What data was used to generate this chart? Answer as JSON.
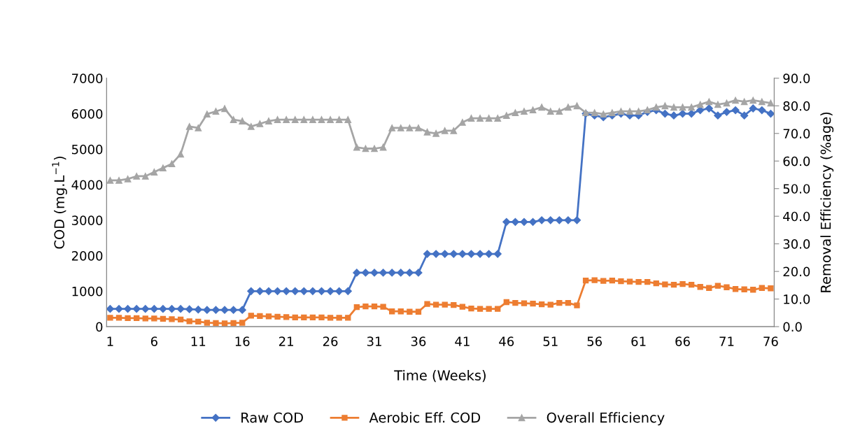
{
  "chart_data": {
    "type": "line",
    "xlabel": "Time (Weeks)",
    "ylabel": "COD (mg.L$^{−1}$)",
    "y2label": "Removal Efficiency (%age)",
    "categories": [
      "1",
      null,
      null,
      null,
      null,
      "6",
      null,
      null,
      null,
      null,
      "11",
      null,
      null,
      null,
      null,
      "16",
      null,
      null,
      null,
      null,
      "21",
      null,
      null,
      null,
      null,
      "26",
      null,
      null,
      null,
      null,
      "31",
      null,
      null,
      null,
      null,
      "36",
      null,
      null,
      null,
      null,
      "41",
      null,
      null,
      null,
      null,
      "46",
      null,
      null,
      null,
      null,
      "51",
      null,
      null,
      null,
      null,
      "56",
      null,
      null,
      null,
      null,
      "61",
      null,
      null,
      null,
      null,
      "66",
      null,
      null,
      null,
      null,
      "71",
      null,
      null,
      null,
      null,
      "76"
    ],
    "ylim": [
      0,
      7000
    ],
    "yticks": [
      0,
      1000,
      2000,
      3000,
      4000,
      5000,
      6000,
      7000
    ],
    "y2lim": [
      0,
      90
    ],
    "y2ticks": [
      {
        "value": 0,
        "label": "0.0"
      },
      {
        "value": 10,
        "label": "10.0"
      },
      {
        "value": 20,
        "label": "20.0"
      },
      {
        "value": 30,
        "label": "30.0"
      },
      {
        "value": 40,
        "label": "40.0"
      },
      {
        "value": 50,
        "label": "50.0"
      },
      {
        "value": 60,
        "label": "60.0"
      },
      {
        "value": 70,
        "label": "70.0"
      },
      {
        "value": 80,
        "label": "80.0"
      },
      {
        "value": 90,
        "label": "90.0"
      }
    ],
    "grid": false,
    "legend": "bottom",
    "line_style": "solid",
    "series": [
      {
        "name": "Raw COD",
        "color": "#4472c4",
        "marker": "diamond",
        "values": [
          500,
          500,
          500,
          500,
          500,
          500,
          500,
          500,
          500,
          490,
          480,
          470,
          470,
          470,
          470,
          470,
          1000,
          1000,
          1000,
          1000,
          1000,
          1000,
          1000,
          1000,
          1000,
          1000,
          1000,
          1000,
          1520,
          1520,
          1520,
          1520,
          1520,
          1520,
          1520,
          1520,
          2050,
          2050,
          2050,
          2050,
          2050,
          2050,
          2050,
          2050,
          2050,
          2950,
          2950,
          2950,
          2950,
          3000,
          3000,
          3000,
          3000,
          3000,
          6000,
          5950,
          5900,
          5950,
          6000,
          5950,
          5950,
          6050,
          6100,
          6000,
          5950,
          6000,
          6000,
          6100,
          6150,
          5950,
          6050,
          6100,
          5950,
          6150,
          6100,
          6000
        ]
      },
      {
        "name": "Aerobic Eff. COD",
        "color": "#ed7d31",
        "marker": "square",
        "values": [
          250,
          250,
          240,
          240,
          230,
          230,
          220,
          210,
          200,
          150,
          140,
          110,
          100,
          90,
          100,
          110,
          310,
          300,
          290,
          280,
          270,
          260,
          260,
          260,
          260,
          250,
          250,
          250,
          550,
          570,
          570,
          560,
          430,
          430,
          420,
          420,
          640,
          620,
          620,
          610,
          560,
          510,
          500,
          500,
          500,
          690,
          670,
          660,
          650,
          630,
          620,
          670,
          670,
          600,
          1300,
          1310,
          1290,
          1300,
          1280,
          1270,
          1260,
          1260,
          1220,
          1190,
          1180,
          1200,
          1180,
          1120,
          1090,
          1150,
          1110,
          1060,
          1050,
          1040,
          1090,
          1080
        ]
      },
      {
        "name": "Overall Efficiency",
        "color": "#a5a5a5",
        "marker": "triangle",
        "axis": "y2",
        "values": [
          53,
          53,
          53.5,
          54.5,
          54.5,
          56,
          57.5,
          59,
          62.5,
          72.5,
          72,
          77,
          78,
          79,
          75,
          74.5,
          72.5,
          73.5,
          74.5,
          75,
          75,
          75,
          75,
          75,
          75,
          75,
          75,
          75,
          65,
          64.5,
          64.5,
          65,
          72,
          72,
          72,
          72,
          70.5,
          70,
          71,
          71,
          74,
          75.5,
          75.5,
          75.5,
          75.5,
          76.5,
          77.5,
          78,
          78.5,
          79.5,
          78,
          78,
          79.5,
          80,
          77.5,
          77.5,
          77,
          77.5,
          78,
          78,
          78,
          78.5,
          79.5,
          80,
          79.5,
          79.5,
          79.5,
          80.5,
          81.5,
          80.5,
          81,
          82,
          81.5,
          82,
          81.5,
          81
        ]
      }
    ]
  }
}
